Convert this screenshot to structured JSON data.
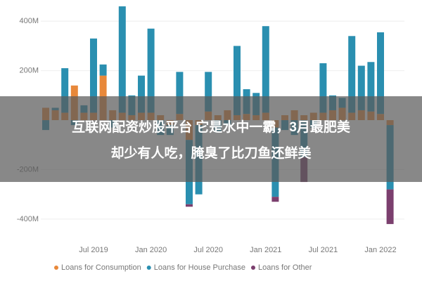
{
  "chart_data": {
    "type": "bar",
    "stacked": true,
    "categories": [
      null,
      null,
      null,
      null,
      null,
      "Jul 2019",
      null,
      null,
      null,
      null,
      null,
      "Jan 2020",
      null,
      null,
      null,
      null,
      null,
      "Jul 2020",
      null,
      null,
      null,
      null,
      null,
      "Jan 2021",
      null,
      null,
      null,
      null,
      null,
      "Jul 2021",
      null,
      null,
      null,
      null,
      null,
      "Jan 2022",
      null
    ],
    "series": [
      {
        "name": "Loans for Consumption",
        "color": "#e8883a",
        "values": [
          50,
          40,
          30,
          140,
          30,
          30,
          180,
          40,
          30,
          20,
          30,
          30,
          20,
          -20,
          25,
          -80,
          -20,
          35,
          20,
          40,
          20,
          25,
          20,
          30,
          -30,
          20,
          40,
          20,
          30,
          30,
          40,
          50,
          30,
          40,
          35,
          25,
          -20
        ]
      },
      {
        "name": "Loans for House Purchase",
        "color": "#2a8fb0",
        "values": [
          -40,
          10,
          180,
          -20,
          30,
          300,
          45,
          -30,
          430,
          80,
          150,
          340,
          -60,
          -40,
          170,
          -260,
          -280,
          160,
          -50,
          -20,
          280,
          100,
          90,
          350,
          -280,
          -40,
          -60,
          -150,
          -30,
          200,
          60,
          40,
          310,
          180,
          200,
          330,
          -260
        ]
      },
      {
        "name": "Loans for Other",
        "color": "#7b3f6e",
        "values": [
          0,
          0,
          0,
          0,
          0,
          0,
          0,
          0,
          0,
          0,
          0,
          0,
          0,
          0,
          0,
          -10,
          0,
          0,
          0,
          0,
          0,
          0,
          0,
          0,
          -20,
          0,
          0,
          -100,
          0,
          0,
          0,
          0,
          0,
          0,
          0,
          0,
          -140
        ]
      }
    ],
    "ylim": [
      -460,
      480
    ],
    "yticks": [
      {
        "value": 400,
        "label": "400M"
      },
      {
        "value": 200,
        "label": "200M"
      },
      {
        "value": -200,
        "label": "-200M"
      },
      {
        "value": -400,
        "label": "-400M"
      }
    ],
    "grid": true
  },
  "banner": {
    "lines": [
      "互联网配资炒股平台 它是水中一霸，3月最肥美",
      "却少有人吃，腌臭了比刀鱼还鲜美"
    ]
  }
}
